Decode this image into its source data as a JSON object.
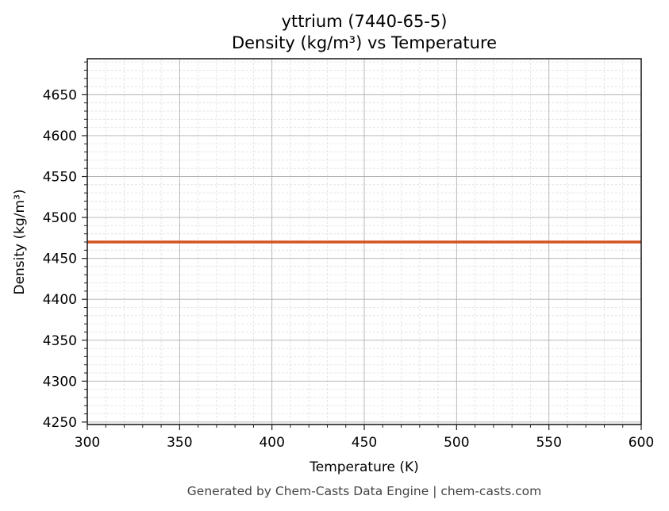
{
  "chart_data": {
    "type": "line",
    "title": "yttrium (7440-65-5)\nDensity (kg/m³) vs Temperature",
    "title_lines": [
      "yttrium (7440-65-5)",
      "Density (kg/m³) vs Temperature"
    ],
    "xlabel": "Temperature (K)",
    "ylabel": "Density (kg/m³)",
    "xlim": [
      300,
      600
    ],
    "ylim": [
      4247,
      4694
    ],
    "x_ticks": [
      300,
      350,
      400,
      450,
      500,
      550,
      600
    ],
    "y_ticks": [
      4250,
      4300,
      4350,
      4400,
      4450,
      4500,
      4550,
      4600,
      4650
    ],
    "grid": {
      "major": true,
      "minor": true
    },
    "legend": null,
    "series": [
      {
        "name": "Density",
        "color": "#d4541f",
        "x": [
          300,
          600
        ],
        "y": [
          4470,
          4470
        ]
      }
    ]
  },
  "footer": "Generated by Chem-Casts Data Engine | chem-casts.com",
  "colors": {
    "line": "#d4541f",
    "major_grid": "#b0b0b0",
    "minor_grid": "#e0e0e0",
    "axis": "#222222",
    "footer_text": "#444444"
  }
}
